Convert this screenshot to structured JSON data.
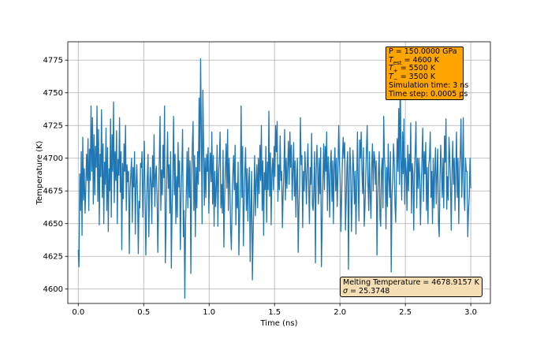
{
  "chart_data": {
    "type": "line",
    "xlabel": "Time (ns)",
    "ylabel": "Temperature (K)",
    "xlim": [
      -0.08,
      3.15
    ],
    "ylim": [
      4589,
      4789
    ],
    "x_ticks": [
      "0.0",
      "0.5",
      "1.0",
      "1.5",
      "2.0",
      "2.5",
      "3.0"
    ],
    "x_tick_values": [
      0.0,
      0.5,
      1.0,
      1.5,
      2.0,
      2.5,
      3.0
    ],
    "y_ticks": [
      "4600",
      "4625",
      "4650",
      "4675",
      "4700",
      "4725",
      "4750",
      "4775"
    ],
    "y_tick_values": [
      4600,
      4625,
      4650,
      4675,
      4700,
      4725,
      4750,
      4775
    ],
    "grid": true,
    "line_color": "#1f77b4",
    "series": [
      {
        "name": "Temperature",
        "x_start": 0.0,
        "x_end": 3.0,
        "values": [
          4630,
          4617,
          4688,
          4660,
          4705,
          4641,
          4716,
          4668,
          4692,
          4658,
          4676,
          4703,
          4683,
          4715,
          4660,
          4707,
          4683,
          4740,
          4690,
          4731,
          4665,
          4718,
          4672,
          4709,
          4693,
          4740,
          4667,
          4722,
          4649,
          4703,
          4686,
          4737,
          4670,
          4711,
          4650,
          4697,
          4680,
          4723,
          4660,
          4708,
          4644,
          4692,
          4675,
          4730,
          4655,
          4718,
          4690,
          4743,
          4666,
          4705,
          4683,
          4721,
          4650,
          4699,
          4687,
          4731,
          4674,
          4705,
          4630,
          4696,
          4669,
          4711,
          4690,
          4725,
          4660,
          4695,
          4682,
          4690,
          4627,
          4676,
          4688,
          4700,
          4651,
          4693,
          4678,
          4705,
          4642,
          4680,
          4695,
          4671,
          4627,
          4667,
          4662,
          4696,
          4693,
          4705,
          4655,
          4683,
          4713,
          4671,
          4626,
          4662,
          4685,
          4703,
          4640,
          4675,
          4693,
          4680,
          4650,
          4702,
          4678,
          4718,
          4663,
          4687,
          4694,
          4672,
          4628,
          4665,
          4700,
          4732,
          4660,
          4691,
          4672,
          4710,
          4685,
          4740,
          4620,
          4652,
          4688,
          4720,
          4677,
          4695,
          4658,
          4705,
          4616,
          4660,
          4689,
          4732,
          4672,
          4703,
          4650,
          4686,
          4655,
          4712,
          4678,
          4698,
          4630,
          4670,
          4692,
          4722,
          4640,
          4660,
          4593,
          4650,
          4675,
          4705,
          4662,
          4708,
          4670,
          4698,
          4612,
          4680,
          4710,
          4728,
          4660,
          4702,
          4640,
          4693,
          4662,
          4705,
          4680,
          4746,
          4690,
          4776,
          4722,
          4650,
          4752,
          4710,
          4664,
          4700,
          4670,
          4703,
          4690,
          4708,
          4658,
          4688,
          4704,
          4682,
          4720,
          4665,
          4702,
          4648,
          4690,
          4663,
          4678,
          4710,
          4648,
          4688,
          4700,
          4720,
          4662,
          4680,
          4658,
          4706,
          4632,
          4668,
          4692,
          4711,
          4677,
          4722,
          4660,
          4700,
          4680,
          4646,
          4630,
          4668,
          4689,
          4702,
          4676,
          4710,
          4649,
          4681,
          4662,
          4697,
          4626,
          4655,
          4681,
          4740,
          4670,
          4709,
          4633,
          4664,
          4690,
          4708,
          4660,
          4692,
          4652,
          4681,
          4693,
          4621,
          4660,
          4690,
          4607,
          4641,
          4670,
          4702,
          4656,
          4683,
          4695,
          4662,
          4700,
          4673,
          4710,
          4683,
          4725,
          4660,
          4698,
          4641,
          4689,
          4676,
          4709,
          4651,
          4697,
          4676,
          4736,
          4671,
          4704,
          4649,
          4690,
          4700,
          4676,
          4709,
          4686,
          4725,
          4705,
          4728,
          4667,
          4695,
          4676,
          4717,
          4683,
          4690,
          4647,
          4673,
          4690,
          4722,
          4668,
          4700,
          4677,
          4693,
          4713,
          4680,
          4720,
          4693,
          4710,
          4668,
          4690,
          4712,
          4671,
          4698,
          4655,
          4683,
          4700,
          4628,
          4660,
          4682,
          4731,
          4695,
          4702,
          4647,
          4690,
          4675,
          4705,
          4690,
          4665,
          4693,
          4711,
          4680,
          4650,
          4693,
          4680,
          4719,
          4664,
          4660,
          4680,
          4705,
          4620,
          4688,
          4710,
          4690,
          4665,
          4700,
          4673,
          4708,
          4617,
          4652,
          4683,
          4711,
          4676,
          4709,
          4690,
          4720,
          4660,
          4701,
          4686,
          4655,
          4697,
          4706,
          4667,
          4698,
          4650,
          4694,
          4708,
          4675,
          4700,
          4663,
          4688,
          4725,
          4698,
          4683,
          4644,
          4672,
          4700,
          4716,
          4700,
          4712,
          4645,
          4667,
          4695,
          4705,
          4615,
          4680,
          4708,
          4690,
          4644,
          4673,
          4706,
          4690,
          4665,
          4690,
          4642,
          4680,
          4720,
          4680,
          4652,
          4714,
          4700,
          4720,
          4690,
          4673,
          4708,
          4648,
          4662,
          4685,
          4707,
          4725,
          4681,
          4660,
          4705,
          4671,
          4654,
          4693,
          4711,
          4675,
          4705,
          4700,
          4680,
          4698,
          4626,
          4668,
          4690,
          4705,
          4654,
          4648,
          4690,
          4700,
          4662,
          4732,
          4700,
          4690,
          4646,
          4693,
          4663,
          4711,
          4684,
          4670,
          4705,
          4613,
          4672,
          4683,
          4711,
          4698,
          4665,
          4651,
          4688,
          4715,
          4690,
          4738,
          4680,
          4770,
          4700,
          4668,
          4720,
          4688,
          4730,
          4665,
          4700,
          4690,
          4660,
          4710,
          4675,
          4703,
          4690,
          4727,
          4658,
          4696,
          4688,
          4645,
          4690,
          4705,
          4728,
          4662,
          4700,
          4677,
          4700,
          4684,
          4649,
          4678,
          4700,
          4723,
          4667,
          4705,
          4688,
          4712,
          4660,
          4693,
          4650,
          4695,
          4700,
          4720,
          4670,
          4690,
          4650,
          4700,
          4662,
          4690,
          4708,
          4665,
          4688,
          4707,
          4650,
          4640,
          4685,
          4710,
          4690,
          4670,
          4700,
          4662,
          4717,
          4697,
          4730,
          4661,
          4686,
          4668,
          4716,
          4700,
          4682,
          4645,
          4690,
          4713,
          4680,
          4700,
          4660,
          4692,
          4720,
          4670,
          4700,
          4650,
          4690,
          4703,
          4730,
          4670,
          4692,
          4731,
          4672,
          4660,
          4700,
          4690,
          4690,
          4640,
          4660,
          4670,
          4700,
          4677
        ]
      }
    ]
  },
  "info_box": {
    "pressure": "P = 150.0000 GPa",
    "t_est_symbol": "T",
    "t_est_sub": "est",
    "t_est_value": " = 4600 K",
    "t_plus_symbol": "T",
    "t_plus_sub": "+",
    "t_plus_value": " = 5500 K",
    "t_minus_symbol": "T",
    "t_minus_sub": "−",
    "t_minus_value": " = 3500 K",
    "sim_time": "Simulation time: 3 ns",
    "time_step": "Time step: 0.0005 ps",
    "color": "#ffa500"
  },
  "result_box": {
    "melting": "Melting Temperature = 4678.9157 K",
    "sigma_symbol": "σ",
    "sigma_value": " = 25.3748",
    "color": "#f5deb3"
  }
}
